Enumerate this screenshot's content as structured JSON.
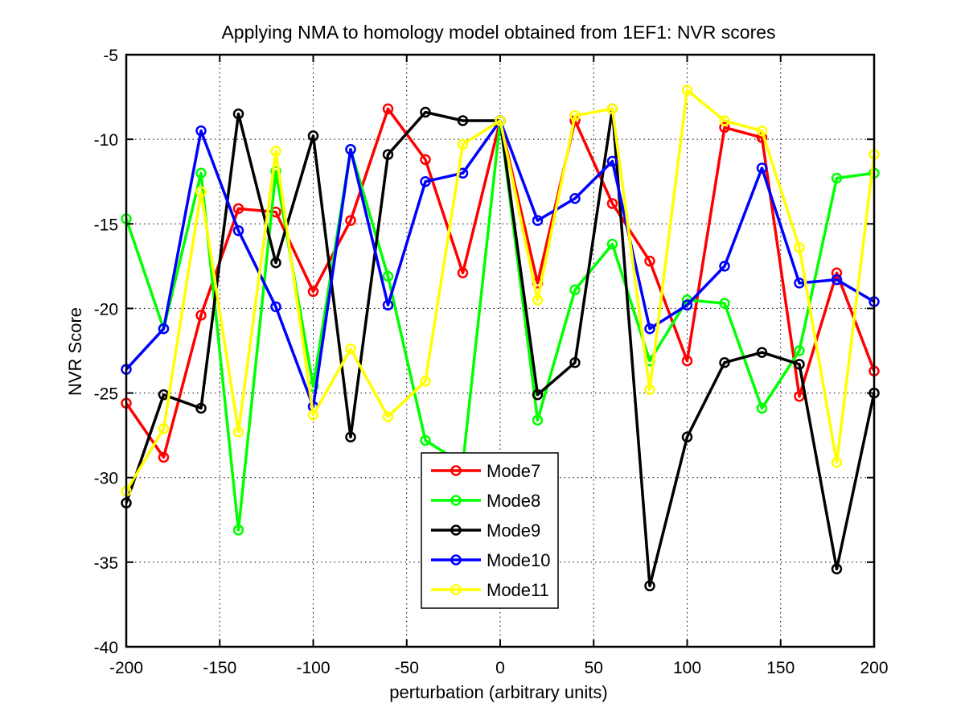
{
  "chart_data": {
    "type": "line",
    "title": "Applying NMA to homology model obtained from 1EF1: NVR scores",
    "xlabel": "perturbation (arbitrary units)",
    "ylabel": "NVR Score",
    "xlim": [
      -200,
      200
    ],
    "ylim": [
      -40,
      -5
    ],
    "xticks": [
      -200,
      -150,
      -100,
      -50,
      0,
      50,
      100,
      150,
      200
    ],
    "yticks": [
      -40,
      -35,
      -30,
      -25,
      -20,
      -15,
      -10,
      -5
    ],
    "grid": true,
    "legend_position": "bottom-center",
    "x": [
      -200,
      -180,
      -160,
      -140,
      -120,
      -100,
      -80,
      -60,
      -40,
      -20,
      0,
      20,
      40,
      60,
      80,
      100,
      120,
      140,
      160,
      180,
      200
    ],
    "series": [
      {
        "name": "Mode7",
        "color": "#ff0000",
        "values": [
          -25.6,
          -28.8,
          -20.4,
          -14.1,
          -14.3,
          -19.0,
          -14.8,
          -8.2,
          -11.2,
          -17.9,
          -8.9,
          -18.5,
          -8.9,
          -13.8,
          -17.2,
          -23.1,
          -9.3,
          -9.9,
          -25.2,
          -17.9,
          -23.7
        ]
      },
      {
        "name": "Mode8",
        "color": "#00ff00",
        "values": [
          -14.7,
          -21.2,
          -12.0,
          -33.1,
          -11.9,
          -24.6,
          -10.6,
          -18.1,
          -27.8,
          -29.2,
          -8.9,
          -26.6,
          -18.9,
          -16.2,
          -23.1,
          -19.5,
          -19.7,
          -25.9,
          -22.5,
          -12.3,
          -12.0
        ]
      },
      {
        "name": "Mode9",
        "color": "#000000",
        "values": [
          -31.5,
          -25.1,
          -25.9,
          -8.5,
          -17.3,
          -9.8,
          -27.6,
          -10.9,
          -8.4,
          -8.9,
          -8.9,
          -25.1,
          -23.2,
          -8.2,
          -36.4,
          -27.6,
          -23.2,
          -22.6,
          -23.3,
          -35.4,
          -25.0
        ]
      },
      {
        "name": "Mode10",
        "color": "#0000ff",
        "values": [
          -23.6,
          -21.2,
          -9.5,
          -15.4,
          -19.9,
          -25.8,
          -10.6,
          -19.8,
          -12.5,
          -12.0,
          -8.9,
          -14.8,
          -13.5,
          -11.3,
          -21.2,
          -19.8,
          -17.5,
          -11.7,
          -18.5,
          -18.3,
          -19.6
        ]
      },
      {
        "name": "Mode11",
        "color": "#ffff00",
        "values": [
          -30.8,
          -27.1,
          -13.1,
          -27.3,
          -10.7,
          -26.3,
          -22.4,
          -26.4,
          -24.3,
          -10.3,
          -8.9,
          -19.5,
          -8.6,
          -8.2,
          -24.8,
          -7.1,
          -8.9,
          -9.5,
          -16.4,
          -29.1,
          -10.9
        ]
      }
    ]
  }
}
